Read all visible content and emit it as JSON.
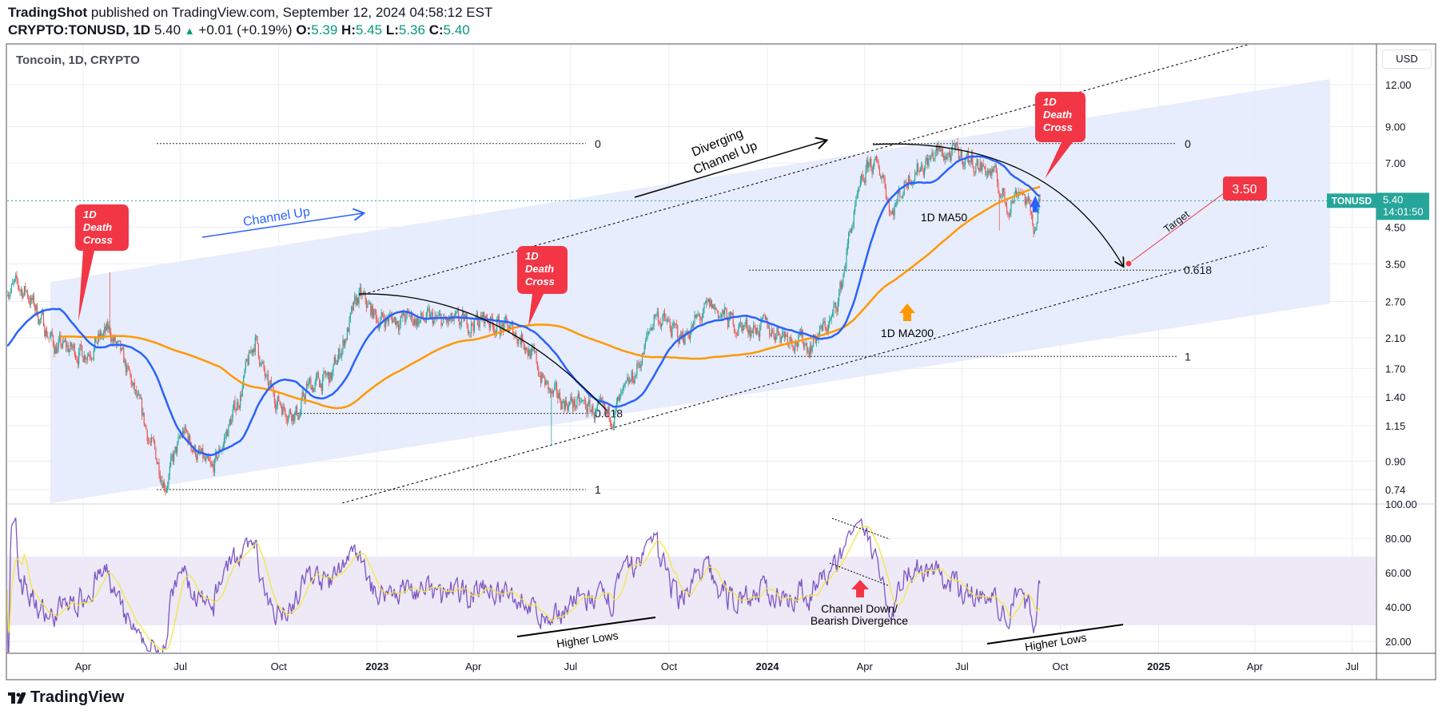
{
  "header": {
    "author": "TradingShot",
    "published": "published on TradingView.com, September 12, 2024 04:58:12 EST",
    "symbol": "CRYPTO:TONUSD, 1D",
    "last": "5.40",
    "change": "+0.01 (+0.19%)",
    "o_label": "O:",
    "o": "5.39",
    "h_label": "H:",
    "h": "5.45",
    "l_label": "L:",
    "l": "5.36",
    "c_label": "C:",
    "c": "5.40"
  },
  "legend": "Toncoin, 1D, CRYPTO",
  "currency_button": "USD",
  "footer": {
    "brand": "TradingView"
  },
  "colors": {
    "up": "#26a69a",
    "down": "#ef5350",
    "ma50": "#2962ff",
    "ma200": "#ff9800",
    "rsi": "#7e57c2",
    "rsi_ma": "#f5e642",
    "channel": "#e3eafc",
    "callout": "#f23645",
    "price_tag": "#26a69a"
  },
  "chart_data": {
    "type": "candlestick",
    "price_axis": {
      "scale": "log",
      "ticks": [
        "12.00",
        "9.00",
        "7.00",
        "4.50",
        "3.50",
        "2.70",
        "2.10",
        "1.70",
        "1.40",
        "1.15",
        "0.90",
        "0.74"
      ],
      "range": [
        0.7,
        13.5
      ]
    },
    "rsi_axis": {
      "ticks": [
        "100.00",
        "80.00",
        "60.00",
        "40.00",
        "20.00"
      ],
      "range": [
        15,
        100
      ],
      "band": [
        30,
        70
      ]
    },
    "time_axis": {
      "ticks": [
        {
          "label": "Apr",
          "date": "2022-04-01"
        },
        {
          "label": "Jul",
          "date": "2022-07-01"
        },
        {
          "label": "Oct",
          "date": "2022-10-01"
        },
        {
          "label": "2023",
          "date": "2023-01-01",
          "bold": true
        },
        {
          "label": "Apr",
          "date": "2023-04-01"
        },
        {
          "label": "Jul",
          "date": "2023-07-01"
        },
        {
          "label": "Oct",
          "date": "2023-10-01"
        },
        {
          "label": "2024",
          "date": "2024-01-01",
          "bold": true
        },
        {
          "label": "Apr",
          "date": "2024-04-01"
        },
        {
          "label": "Jul",
          "date": "2024-07-01"
        },
        {
          "label": "Oct",
          "date": "2024-10-01"
        },
        {
          "label": "2025",
          "date": "2025-01-01",
          "bold": true
        },
        {
          "label": "Apr",
          "date": "2025-04-01"
        },
        {
          "label": "Jul",
          "date": "2025-07-01"
        }
      ]
    },
    "price_path": [
      [
        "2022-01-20",
        3.0
      ],
      [
        "2022-02-07",
        2.9
      ],
      [
        "2022-03-05",
        2.0
      ],
      [
        "2022-04-01",
        1.9
      ],
      [
        "2022-04-26",
        2.2
      ],
      [
        "2022-05-14",
        1.6
      ],
      [
        "2022-06-04",
        1.0
      ],
      [
        "2022-06-17",
        0.78
      ],
      [
        "2022-07-04",
        1.1
      ],
      [
        "2022-07-30",
        0.82
      ],
      [
        "2022-08-25",
        1.4
      ],
      [
        "2022-09-09",
        2.1
      ],
      [
        "2022-09-20",
        1.5
      ],
      [
        "2022-10-07",
        1.3
      ],
      [
        "2022-10-20",
        1.25
      ],
      [
        "2022-10-28",
        1.5
      ],
      [
        "2022-11-19",
        1.6
      ],
      [
        "2022-12-15",
        2.8
      ],
      [
        "2023-01-01",
        2.4
      ],
      [
        "2023-02-04",
        2.4
      ],
      [
        "2023-03-19",
        2.3
      ],
      [
        "2023-04-14",
        2.4
      ],
      [
        "2023-05-18",
        2.1
      ],
      [
        "2023-06-13",
        1.4
      ],
      [
        "2023-07-17",
        1.3
      ],
      [
        "2023-08-04",
        1.2
      ],
      [
        "2023-08-21",
        1.4
      ],
      [
        "2023-09-07",
        1.9
      ],
      [
        "2023-09-18",
        2.5
      ],
      [
        "2023-10-11",
        2.1
      ],
      [
        "2023-11-10",
        2.6
      ],
      [
        "2023-12-02",
        2.3
      ],
      [
        "2024-01-14",
        2.2
      ],
      [
        "2024-02-09",
        2.0
      ],
      [
        "2024-03-02",
        2.4
      ],
      [
        "2024-03-10",
        3.0
      ],
      [
        "2024-03-19",
        4.5
      ],
      [
        "2024-04-05",
        7.0
      ],
      [
        "2024-04-18",
        6.5
      ],
      [
        "2024-04-26",
        5.0
      ],
      [
        "2024-05-13",
        6.5
      ],
      [
        "2024-06-08",
        7.5
      ],
      [
        "2024-07-04",
        7.3
      ],
      [
        "2024-07-30",
        6.5
      ],
      [
        "2024-08-12",
        5.2
      ],
      [
        "2024-08-25",
        6.0
      ],
      [
        "2024-09-07",
        4.5
      ],
      [
        "2024-09-12",
        5.4
      ]
    ],
    "spikes": [
      [
        "2022-04-26",
        3.3,
        "high"
      ],
      [
        "2023-06-13",
        1.0,
        "low"
      ],
      [
        "2024-08-05",
        4.4,
        "low"
      ]
    ],
    "indicators": [
      "1D MA50",
      "1D MA200",
      "RSI 14",
      "RSI MA 14"
    ],
    "current": {
      "symbol": "TONUSD",
      "price": "5.40",
      "countdown": "14:01:50"
    },
    "annotations": {
      "death_cross": "1D\nDeath\nCross",
      "death_cross_lines": [
        "1D",
        "Death",
        "Cross"
      ],
      "channel_up": "Channel Up",
      "diverging_1": "Diverging",
      "diverging_2": "Channel Up",
      "ma50_label": "1D MA50",
      "ma200_label": "1D MA200",
      "target_label": "Target",
      "target_value": "3.50",
      "fib1": {
        "zero": "0",
        "mid": "0.618",
        "one": "1",
        "levels": [
          8.0,
          1.25,
          0.74
        ]
      },
      "fib2": {
        "zero": "0",
        "mid": "0.618",
        "one": "1",
        "levels": [
          8.0,
          3.35,
          1.85
        ]
      },
      "rsi_higher_lows_1": "Higher Lows",
      "rsi_higher_lows_2": "Higher Lows",
      "rsi_channel_1": "Channel Down/",
      "rsi_channel_2": "Bearish Divergence"
    }
  }
}
